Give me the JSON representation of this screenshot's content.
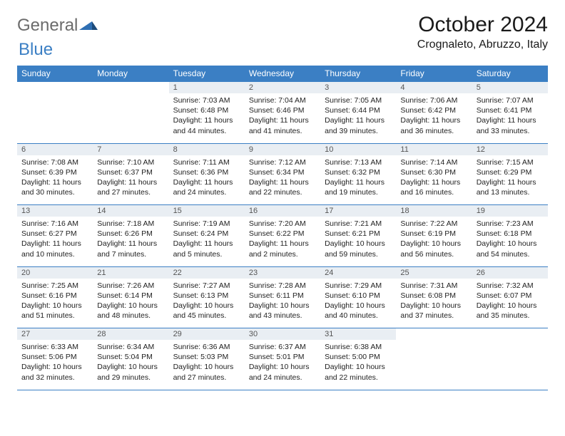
{
  "logo": {
    "text1": "General",
    "text2": "Blue",
    "mark_color": "#2f6fb3"
  },
  "title": "October 2024",
  "location": "Crognaleto, Abruzzo, Italy",
  "colors": {
    "header_bg": "#3b7fc4",
    "header_fg": "#ffffff",
    "daynum_bg": "#e9eef3",
    "border": "#3b7fc4",
    "text": "#1a1a1a"
  },
  "day_headers": [
    "Sunday",
    "Monday",
    "Tuesday",
    "Wednesday",
    "Thursday",
    "Friday",
    "Saturday"
  ],
  "weeks": [
    [
      null,
      null,
      {
        "n": "1",
        "sr": "7:03 AM",
        "ss": "6:48 PM",
        "dl": "11 hours and 44 minutes."
      },
      {
        "n": "2",
        "sr": "7:04 AM",
        "ss": "6:46 PM",
        "dl": "11 hours and 41 minutes."
      },
      {
        "n": "3",
        "sr": "7:05 AM",
        "ss": "6:44 PM",
        "dl": "11 hours and 39 minutes."
      },
      {
        "n": "4",
        "sr": "7:06 AM",
        "ss": "6:42 PM",
        "dl": "11 hours and 36 minutes."
      },
      {
        "n": "5",
        "sr": "7:07 AM",
        "ss": "6:41 PM",
        "dl": "11 hours and 33 minutes."
      }
    ],
    [
      {
        "n": "6",
        "sr": "7:08 AM",
        "ss": "6:39 PM",
        "dl": "11 hours and 30 minutes."
      },
      {
        "n": "7",
        "sr": "7:10 AM",
        "ss": "6:37 PM",
        "dl": "11 hours and 27 minutes."
      },
      {
        "n": "8",
        "sr": "7:11 AM",
        "ss": "6:36 PM",
        "dl": "11 hours and 24 minutes."
      },
      {
        "n": "9",
        "sr": "7:12 AM",
        "ss": "6:34 PM",
        "dl": "11 hours and 22 minutes."
      },
      {
        "n": "10",
        "sr": "7:13 AM",
        "ss": "6:32 PM",
        "dl": "11 hours and 19 minutes."
      },
      {
        "n": "11",
        "sr": "7:14 AM",
        "ss": "6:30 PM",
        "dl": "11 hours and 16 minutes."
      },
      {
        "n": "12",
        "sr": "7:15 AM",
        "ss": "6:29 PM",
        "dl": "11 hours and 13 minutes."
      }
    ],
    [
      {
        "n": "13",
        "sr": "7:16 AM",
        "ss": "6:27 PM",
        "dl": "11 hours and 10 minutes."
      },
      {
        "n": "14",
        "sr": "7:18 AM",
        "ss": "6:26 PM",
        "dl": "11 hours and 7 minutes."
      },
      {
        "n": "15",
        "sr": "7:19 AM",
        "ss": "6:24 PM",
        "dl": "11 hours and 5 minutes."
      },
      {
        "n": "16",
        "sr": "7:20 AM",
        "ss": "6:22 PM",
        "dl": "11 hours and 2 minutes."
      },
      {
        "n": "17",
        "sr": "7:21 AM",
        "ss": "6:21 PM",
        "dl": "10 hours and 59 minutes."
      },
      {
        "n": "18",
        "sr": "7:22 AM",
        "ss": "6:19 PM",
        "dl": "10 hours and 56 minutes."
      },
      {
        "n": "19",
        "sr": "7:23 AM",
        "ss": "6:18 PM",
        "dl": "10 hours and 54 minutes."
      }
    ],
    [
      {
        "n": "20",
        "sr": "7:25 AM",
        "ss": "6:16 PM",
        "dl": "10 hours and 51 minutes."
      },
      {
        "n": "21",
        "sr": "7:26 AM",
        "ss": "6:14 PM",
        "dl": "10 hours and 48 minutes."
      },
      {
        "n": "22",
        "sr": "7:27 AM",
        "ss": "6:13 PM",
        "dl": "10 hours and 45 minutes."
      },
      {
        "n": "23",
        "sr": "7:28 AM",
        "ss": "6:11 PM",
        "dl": "10 hours and 43 minutes."
      },
      {
        "n": "24",
        "sr": "7:29 AM",
        "ss": "6:10 PM",
        "dl": "10 hours and 40 minutes."
      },
      {
        "n": "25",
        "sr": "7:31 AM",
        "ss": "6:08 PM",
        "dl": "10 hours and 37 minutes."
      },
      {
        "n": "26",
        "sr": "7:32 AM",
        "ss": "6:07 PM",
        "dl": "10 hours and 35 minutes."
      }
    ],
    [
      {
        "n": "27",
        "sr": "6:33 AM",
        "ss": "5:06 PM",
        "dl": "10 hours and 32 minutes."
      },
      {
        "n": "28",
        "sr": "6:34 AM",
        "ss": "5:04 PM",
        "dl": "10 hours and 29 minutes."
      },
      {
        "n": "29",
        "sr": "6:36 AM",
        "ss": "5:03 PM",
        "dl": "10 hours and 27 minutes."
      },
      {
        "n": "30",
        "sr": "6:37 AM",
        "ss": "5:01 PM",
        "dl": "10 hours and 24 minutes."
      },
      {
        "n": "31",
        "sr": "6:38 AM",
        "ss": "5:00 PM",
        "dl": "10 hours and 22 minutes."
      },
      null,
      null
    ]
  ],
  "labels": {
    "sunrise": "Sunrise:",
    "sunset": "Sunset:",
    "daylight": "Daylight:"
  }
}
